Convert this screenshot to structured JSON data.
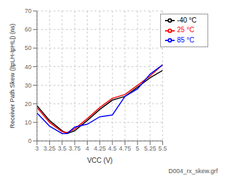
{
  "chart_data": {
    "type": "line",
    "x_label": "VCC (V)",
    "y_label": "Receiver Path Skew (|tpLH-tpHL|) (ns)",
    "annotation": "D004_rx_skew.grf",
    "x": [
      3.0,
      3.25,
      3.5,
      3.6,
      3.75,
      4.0,
      4.25,
      4.5,
      4.75,
      5.0,
      5.25,
      5.5
    ],
    "series": [
      {
        "name": "-40 °C",
        "color": "#000000",
        "values": [
          19,
          11,
          5.5,
          4.0,
          5.5,
          11,
          17,
          22,
          24,
          29,
          34,
          38
        ]
      },
      {
        "name": "25 °C",
        "color": "#ff0000",
        "values": [
          18,
          10,
          5.0,
          4.5,
          6.5,
          12,
          18,
          23,
          25,
          30,
          35,
          41
        ]
      },
      {
        "name": "85 °C",
        "color": "#0000ff",
        "values": [
          15,
          8,
          4.0,
          4.0,
          7.5,
          9,
          13,
          14,
          24,
          28,
          36,
          41
        ]
      }
    ],
    "xlim": [
      3.0,
      5.5
    ],
    "ylim": [
      0,
      70
    ],
    "xticks": [
      3.0,
      3.25,
      3.5,
      3.75,
      4.0,
      4.25,
      4.5,
      4.75,
      5.0,
      5.25,
      5.5
    ],
    "yticks": [
      0,
      10,
      20,
      30,
      40,
      50,
      60,
      70
    ],
    "grid": true,
    "legend": "upper right"
  }
}
